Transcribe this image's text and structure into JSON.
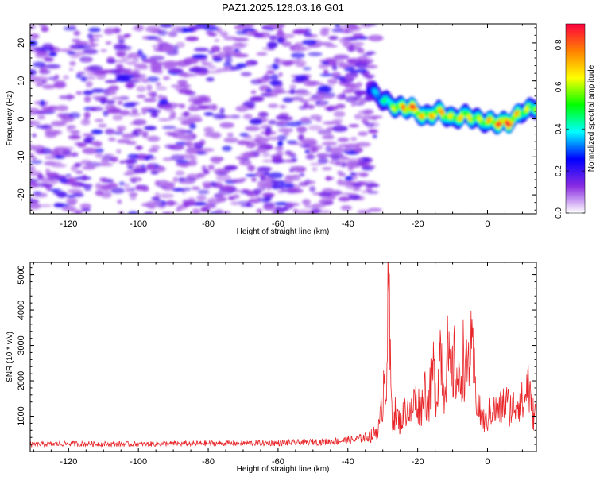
{
  "title": "PAZ1.2025.126.03.16.G01",
  "chart_data": [
    {
      "type": "heatmap",
      "xlabel": "Height of straight line (km)",
      "ylabel": "Frequency (Hz)",
      "xlim": [
        -131,
        14
      ],
      "ylim": [
        -25,
        25
      ],
      "xticks": [
        -120,
        -100,
        -80,
        -60,
        -40,
        -20,
        0
      ],
      "xtick_labels": [
        "-120",
        "-100",
        "-80",
        "-60",
        "-40",
        "-20",
        "0"
      ],
      "yticks": [
        -20,
        -10,
        0,
        10,
        20
      ],
      "ytick_labels": [
        "-20",
        "-10",
        "0",
        "10",
        "20"
      ],
      "noise_region_x": [
        -131,
        -32
      ],
      "noise_level": 0.15,
      "signal_track": {
        "x": [
          -34,
          -30,
          -26,
          -22,
          -18,
          -14,
          -10,
          -6,
          -2,
          2,
          6,
          10,
          14
        ],
        "y": [
          8,
          5,
          3,
          3,
          0.5,
          2,
          0,
          1,
          -0.5,
          -1,
          -1,
          2,
          3
        ],
        "amplitude": [
          0.2,
          0.35,
          0.6,
          0.85,
          0.65,
          0.7,
          0.6,
          0.65,
          0.55,
          0.75,
          0.9,
          0.6,
          0.55
        ]
      },
      "colorbar": {
        "label": "Normalized spectral amplitude",
        "range": [
          0,
          0.9
        ],
        "ticks": [
          0.0,
          0.2,
          0.4,
          0.6,
          0.8
        ],
        "tick_labels": [
          "0.0",
          "0.2",
          "0.4",
          "0.6",
          "0.8"
        ]
      },
      "colormap": [
        "#ffffff",
        "#8a2be2",
        "#0000ff",
        "#00ffff",
        "#00ff00",
        "#ffff00",
        "#ff8000",
        "#ff0040"
      ]
    },
    {
      "type": "line",
      "xlabel": "Height of straight line (km)",
      "ylabel": "SNR (10 * v/v)",
      "xlim": [
        -131,
        14
      ],
      "ylim": [
        0,
        5350
      ],
      "xticks": [
        -120,
        -100,
        -80,
        -60,
        -40,
        -20,
        0
      ],
      "xtick_labels": [
        "-120",
        "-100",
        "-80",
        "-60",
        "-40",
        "-20",
        "0"
      ],
      "yticks": [
        1000,
        2000,
        3000,
        4000,
        5000
      ],
      "ytick_labels": [
        "1000",
        "2000",
        "3000",
        "4000",
        "5000"
      ],
      "series": [
        {
          "color": "#e8262a",
          "x": [
            -131,
            -120,
            -100,
            -80,
            -60,
            -45,
            -38,
            -33,
            -31,
            -30,
            -29.5,
            -29,
            -28.6,
            -28.3,
            -28,
            -27.6,
            -27.2,
            -26.5,
            -25,
            -23,
            -22,
            -21,
            -19,
            -18,
            -17,
            -15.5,
            -14.5,
            -13.5,
            -12.5,
            -11.5,
            -10.5,
            -9.5,
            -8,
            -7,
            -6,
            -5,
            -4,
            -3.5,
            -3,
            -2,
            -0.5,
            1,
            3,
            5,
            7,
            9,
            10.5,
            11.5,
            12.5,
            13.5,
            14
          ],
          "y": [
            200,
            220,
            210,
            230,
            240,
            280,
            330,
            450,
            700,
            1500,
            2500,
            1800,
            3500,
            5300,
            2800,
            1600,
            900,
            1100,
            800,
            1300,
            1000,
            1500,
            1200,
            1800,
            1300,
            2300,
            1500,
            3100,
            1700,
            2800,
            1900,
            2500,
            1800,
            2700,
            2200,
            2900,
            2400,
            1800,
            1500,
            1000,
            800,
            1200,
            1100,
            1400,
            1200,
            1500,
            1300,
            2100,
            1200,
            1000,
            1200
          ]
        }
      ]
    }
  ]
}
